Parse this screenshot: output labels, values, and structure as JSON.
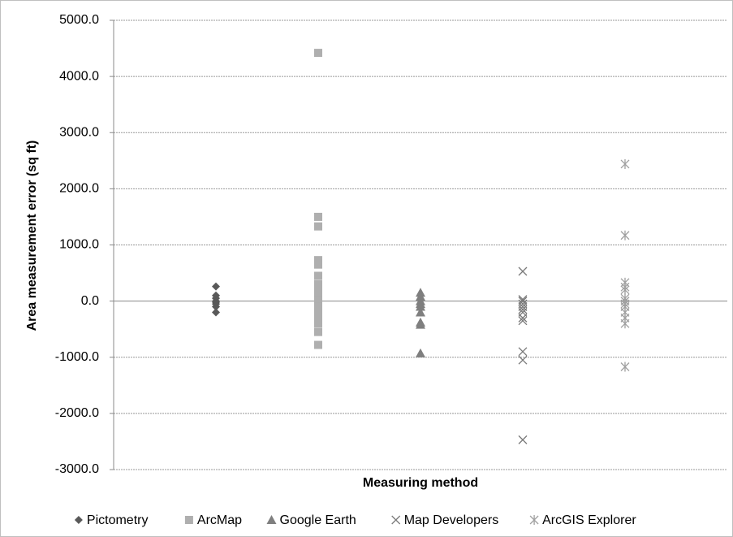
{
  "chart_data": {
    "type": "strip",
    "y_label": "Area measurement  error (sq ft)",
    "x_label": "Measuring  method",
    "ylim": [
      -3000,
      5000
    ],
    "yticks": [
      {
        "value": -3000,
        "label": "-3000.0"
      },
      {
        "value": -2000,
        "label": "-2000.0"
      },
      {
        "value": -1000,
        "label": "-1000.0"
      },
      {
        "value": 0,
        "label": "0.0"
      },
      {
        "value": 1000,
        "label": "1000.0"
      },
      {
        "value": 2000,
        "label": "2000.0"
      },
      {
        "value": 3000,
        "label": "3000.0"
      },
      {
        "value": 4000,
        "label": "4000.0"
      },
      {
        "value": 5000,
        "label": "5000.0"
      }
    ],
    "grid": true,
    "legend": "bottom",
    "series": [
      {
        "name": "Pictometry",
        "color": "#595959",
        "marker": "diamond",
        "values": [
          260,
          100,
          50,
          0,
          -20,
          -50,
          -100,
          -200
        ]
      },
      {
        "name": "ArcMap",
        "color": "#afafaf",
        "marker": "square",
        "values": [
          4420,
          1500,
          1330,
          730,
          650,
          450,
          300,
          200,
          100,
          0,
          -100,
          -200,
          -300,
          -400,
          -550,
          -780
        ]
      },
      {
        "name": "Google Earth",
        "color": "#7f7f7f",
        "marker": "triangle",
        "values": [
          150,
          80,
          0,
          -50,
          -100,
          -200,
          -380,
          -420,
          -930
        ]
      },
      {
        "name": "Map Developers",
        "color": "#7a7a7a",
        "marker": "x",
        "values": [
          530,
          30,
          0,
          -50,
          -100,
          -150,
          -200,
          -300,
          -350,
          -900,
          -1050,
          -2470
        ]
      },
      {
        "name": "ArcGIS Explorer",
        "color": "#a0a0a0",
        "marker": "star",
        "values": [
          2440,
          1170,
          330,
          250,
          200,
          50,
          0,
          -50,
          -100,
          -200,
          -300,
          -400,
          -1170
        ]
      }
    ]
  }
}
